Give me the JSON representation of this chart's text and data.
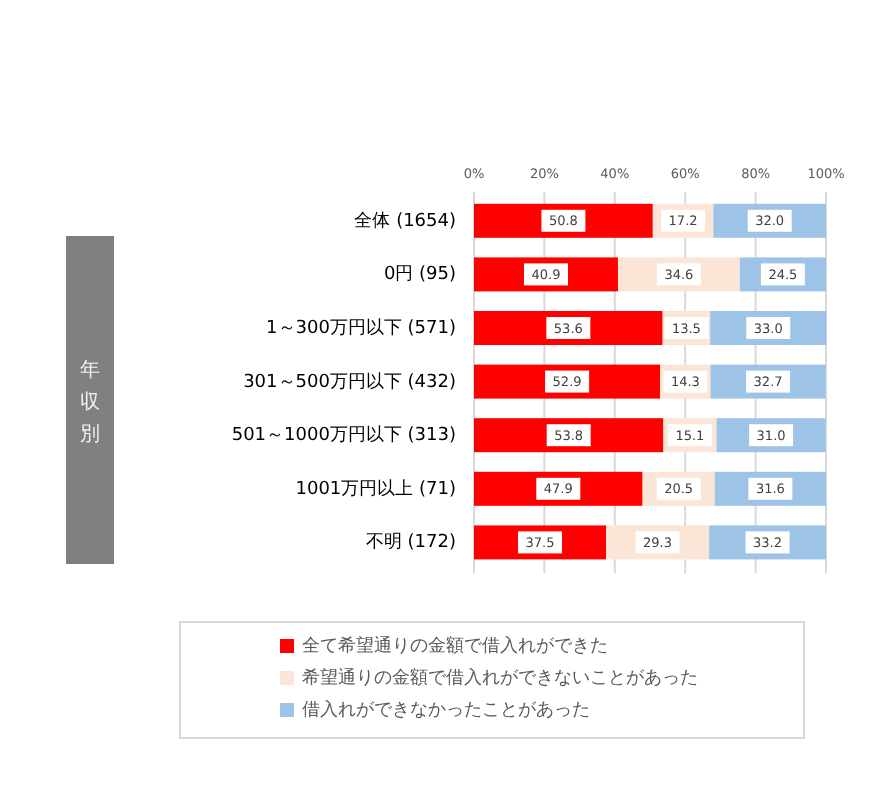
{
  "chart_data": {
    "type": "bar",
    "orientation": "horizontal",
    "stacked": true,
    "annotations": [
      "年収別"
    ],
    "categories": [
      "全体 (1654)",
      "0円 (95)",
      "1～300万円以下 (571)",
      "301～500万円以下 (432)",
      "501～1000万円以下 (313)",
      "1001万円以上 (71)",
      "不明 (172)"
    ],
    "series": [
      {
        "name": "全て希望通りの金額で借入れができた",
        "color": "#ff0000",
        "values": [
          50.8,
          40.9,
          53.6,
          52.9,
          53.8,
          47.9,
          37.5
        ],
        "value_labels": [
          "50.8",
          "40.9",
          "53.6",
          "52.9",
          "53.8",
          "47.9",
          "37.5"
        ]
      },
      {
        "name": "希望通りの金額で借入れができないことがあった",
        "color": "#fbe5d6",
        "values": [
          17.2,
          34.6,
          13.5,
          14.3,
          15.1,
          20.5,
          29.3
        ],
        "value_labels": [
          "17.2",
          "34.6",
          "13.5",
          "14.3",
          "15.1",
          "20.5",
          "29.3"
        ]
      },
      {
        "name": "借入れができなかったことがあった",
        "color": "#9dc3e6",
        "values": [
          32.0,
          24.5,
          33.0,
          32.7,
          31.0,
          31.6,
          33.2
        ],
        "value_labels": [
          "32.0",
          "24.5",
          "33.0",
          "32.7",
          "31.0",
          "31.6",
          "33.2"
        ]
      }
    ],
    "xlim": [
      0,
      100
    ],
    "xticks": [
      {
        "value": 0,
        "label": "0%"
      },
      {
        "value": 20,
        "label": "20%"
      },
      {
        "value": 40,
        "label": "40%"
      },
      {
        "value": 60,
        "label": "60%"
      },
      {
        "value": 80,
        "label": "80%"
      },
      {
        "value": 100,
        "label": "100%"
      }
    ],
    "grid": "x",
    "legend": "bottom"
  }
}
